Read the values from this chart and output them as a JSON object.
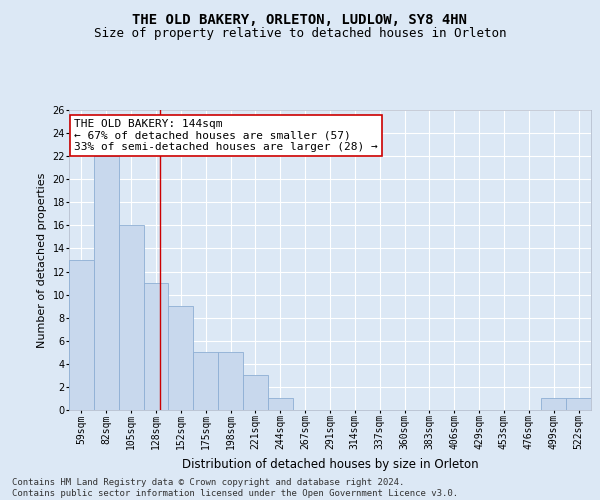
{
  "title": "THE OLD BAKERY, ORLETON, LUDLOW, SY8 4HN",
  "subtitle": "Size of property relative to detached houses in Orleton",
  "xlabel": "Distribution of detached houses by size in Orleton",
  "ylabel": "Number of detached properties",
  "categories": [
    "59sqm",
    "82sqm",
    "105sqm",
    "128sqm",
    "152sqm",
    "175sqm",
    "198sqm",
    "221sqm",
    "244sqm",
    "267sqm",
    "291sqm",
    "314sqm",
    "337sqm",
    "360sqm",
    "383sqm",
    "406sqm",
    "429sqm",
    "453sqm",
    "476sqm",
    "499sqm",
    "522sqm"
  ],
  "values": [
    13,
    22,
    16,
    11,
    9,
    5,
    5,
    3,
    1,
    0,
    0,
    0,
    0,
    0,
    0,
    0,
    0,
    0,
    0,
    1,
    1
  ],
  "bar_color": "#c8d8ed",
  "bar_edge_color": "#8eafd4",
  "ylim": [
    0,
    26
  ],
  "yticks": [
    0,
    2,
    4,
    6,
    8,
    10,
    12,
    14,
    16,
    18,
    20,
    22,
    24,
    26
  ],
  "vline_color": "#cc0000",
  "vline_x": 3.17,
  "annotation_text": "THE OLD BAKERY: 144sqm\n← 67% of detached houses are smaller (57)\n33% of semi-detached houses are larger (28) →",
  "annotation_box_facecolor": "#ffffff",
  "annotation_box_edgecolor": "#cc0000",
  "footer_text": "Contains HM Land Registry data © Crown copyright and database right 2024.\nContains public sector information licensed under the Open Government Licence v3.0.",
  "background_color": "#dce8f5",
  "plot_bg_color": "#dce8f5",
  "grid_color": "#ffffff",
  "title_fontsize": 10,
  "subtitle_fontsize": 9,
  "xlabel_fontsize": 8.5,
  "ylabel_fontsize": 8,
  "tick_fontsize": 7,
  "annotation_fontsize": 8,
  "footer_fontsize": 6.5
}
